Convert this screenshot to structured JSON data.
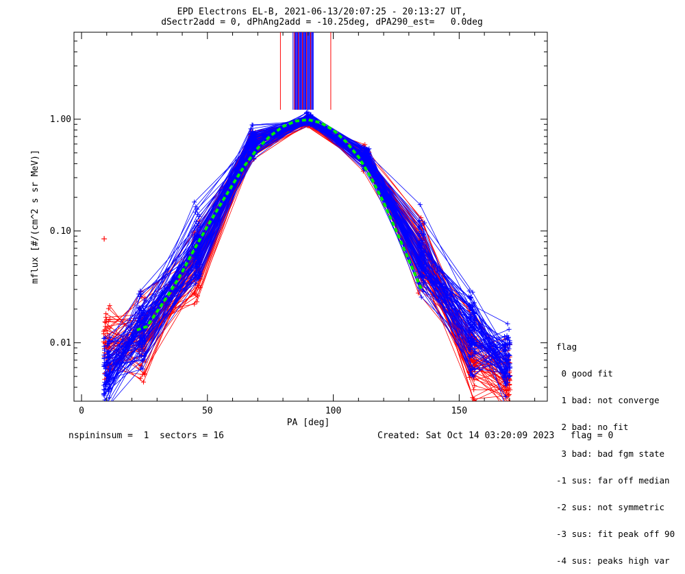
{
  "header": {
    "title_line1": "EPD Electrons EL-B, 2021-06-13/20:07:25 - 20:13:27 UT,",
    "title_line2": "dSectr2add = 0, dPhAng2add = -10.25deg, dPA290_est=   0.0deg"
  },
  "footer": {
    "left": "nspininsum =  1  sectors = 16",
    "right": "Created: Sat Oct 14 03:20:09 2023   flag = 0"
  },
  "legend": {
    "title": "flag",
    "items": [
      " 0 good fit",
      " 1 bad: not converge",
      " 2 bad: no fit",
      " 3 bad: bad fgm state",
      "-1 sus: far off median",
      "-2 sus: not symmetric",
      "-3 sus: fit peak off 90",
      "-4 sus: peaks high var"
    ]
  },
  "colors": {
    "red": "#ff0000",
    "blue": "#0000ff",
    "green": "#00ee00",
    "axis": "#000000"
  },
  "chart_data": {
    "type": "line",
    "xlabel": "PA [deg]",
    "ylabel": "mflux [#/(cm^2 s sr MeV)]",
    "xlim": [
      -3,
      185
    ],
    "ylim": [
      0.003,
      6.0
    ],
    "yscale": "log",
    "xticks": [
      0,
      50,
      100,
      150
    ],
    "xtick_labels": [
      "0",
      "50",
      "100",
      "150"
    ],
    "yticks": [
      0.01,
      0.1,
      1.0
    ],
    "ytick_labels": [
      "0.01",
      "0.10",
      "1.00"
    ],
    "pa_bins": [
      10,
      24,
      46,
      68,
      90,
      113,
      135,
      155,
      169
    ],
    "series": [
      {
        "color": "red",
        "y": [
          0.009,
          0.011,
          0.05,
          0.6,
          0.95,
          0.45,
          0.06,
          0.008,
          0.005
        ]
      },
      {
        "color": "blue",
        "y": [
          0.006,
          0.012,
          0.07,
          0.62,
          1.0,
          0.45,
          0.06,
          0.012,
          0.007
        ]
      }
    ],
    "fit_curve": {
      "color": "green",
      "x": [
        22,
        26,
        30,
        35,
        40,
        45,
        50,
        55,
        60,
        65,
        70,
        75,
        80,
        85,
        90,
        95,
        100,
        105,
        110,
        115,
        120,
        125,
        130,
        135
      ],
      "y": [
        0.013,
        0.014,
        0.019,
        0.028,
        0.043,
        0.07,
        0.11,
        0.17,
        0.26,
        0.39,
        0.55,
        0.71,
        0.86,
        0.96,
        0.99,
        0.93,
        0.8,
        0.63,
        0.46,
        0.3,
        0.18,
        0.1,
        0.055,
        0.03
      ]
    },
    "outlier_points": [
      {
        "x": 9,
        "y": 0.085,
        "color": "red"
      }
    ],
    "peak_markers": {
      "pa_values": [
        79,
        84,
        85,
        86,
        87,
        88,
        89,
        90,
        91,
        92,
        99
      ],
      "colors": [
        "red",
        "blue",
        "red",
        "blue",
        "blue",
        "red",
        "blue",
        "blue",
        "red",
        "blue",
        "red"
      ]
    }
  }
}
